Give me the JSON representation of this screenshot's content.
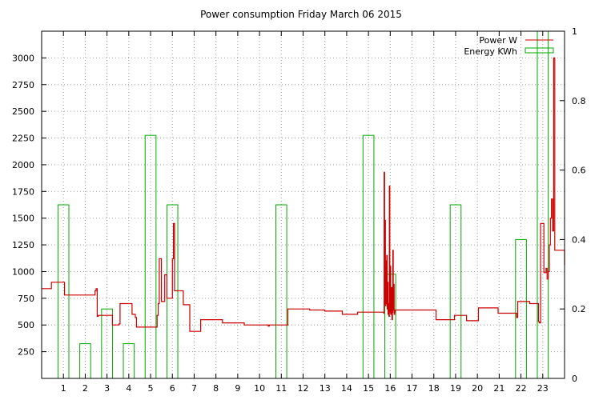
{
  "colors": {
    "power": "#cc0000",
    "energy": "#00aa00",
    "grid": "#a0a0a0",
    "axis": "#000000"
  },
  "chart_data": {
    "type": "line",
    "title": "Power consumption Friday March 06 2015",
    "xlim": [
      0,
      24
    ],
    "xticks": [
      1,
      2,
      3,
      4,
      5,
      6,
      7,
      8,
      9,
      10,
      11,
      12,
      13,
      14,
      15,
      16,
      17,
      18,
      19,
      20,
      21,
      22,
      23
    ],
    "xticklabels": [
      "1",
      "2",
      "3",
      "4",
      "5",
      "6",
      "7",
      "8",
      "9",
      "10",
      "11",
      "12",
      "13",
      "14",
      "15",
      "16",
      "17",
      "18",
      "19",
      "20",
      "21",
      "22",
      "23"
    ],
    "ylim": [
      0,
      3250
    ],
    "yticks": [
      250,
      500,
      750,
      1000,
      1250,
      1500,
      1750,
      2000,
      2250,
      2500,
      2750,
      3000
    ],
    "yticklabels": [
      "250",
      "500",
      "750",
      "1000",
      "1250",
      "1500",
      "1750",
      "2000",
      "2250",
      "2500",
      "2750",
      "3000"
    ],
    "y2lim": [
      0,
      1
    ],
    "y2ticks": [
      0,
      0.2,
      0.4,
      0.6,
      0.8,
      1
    ],
    "y2ticklabels": [
      "0",
      "0.2",
      "0.4",
      "0.6",
      "0.8",
      "1"
    ],
    "grid": true,
    "legend_position": "top-right",
    "series": [
      {
        "name": "Power W",
        "axis": "y",
        "style": "step",
        "x": [
          0.0,
          0.45,
          1.05,
          2.45,
          2.5,
          2.55,
          2.6,
          3.2,
          3.25,
          3.55,
          3.6,
          4.1,
          4.15,
          4.3,
          4.35,
          5.15,
          5.3,
          5.35,
          5.4,
          5.5,
          5.65,
          5.75,
          5.95,
          6.0,
          6.05,
          6.1,
          6.35,
          6.5,
          6.6,
          6.8,
          7.3,
          8.2,
          8.3,
          9.3,
          10.4,
          10.45,
          11.3,
          12.3,
          13.0,
          13.8,
          14.5,
          15.7,
          15.72,
          15.74,
          15.76,
          15.78,
          15.8,
          15.82,
          15.84,
          15.86,
          15.88,
          15.9,
          15.92,
          15.94,
          15.96,
          15.98,
          16.0,
          16.02,
          16.04,
          16.06,
          16.08,
          16.1,
          16.12,
          16.14,
          16.16,
          16.18,
          16.2,
          16.22,
          16.25,
          16.3,
          17.0,
          18.1,
          18.95,
          19.5,
          19.85,
          20.05,
          20.95,
          21.8,
          21.85,
          22.4,
          22.8,
          22.85,
          22.9,
          23.05,
          23.15,
          23.2,
          23.25,
          23.3,
          23.35,
          23.4,
          23.45,
          23.5,
          23.55,
          23.6,
          24.0
        ],
        "y": [
          840,
          900,
          780,
          820,
          840,
          580,
          590,
          590,
          500,
          510,
          700,
          700,
          600,
          570,
          480,
          480,
          590,
          700,
          1120,
          720,
          970,
          750,
          750,
          1120,
          1450,
          820,
          820,
          690,
          690,
          440,
          550,
          550,
          520,
          500,
          490,
          500,
          650,
          640,
          630,
          600,
          620,
          610,
          1930,
          700,
          1480,
          680,
          1100,
          700,
          1150,
          650,
          900,
          600,
          700,
          580,
          1800,
          620,
          1050,
          600,
          700,
          850,
          550,
          620,
          1200,
          640,
          880,
          600,
          620,
          640,
          640,
          640,
          640,
          550,
          590,
          540,
          540,
          660,
          610,
          570,
          720,
          700,
          530,
          520,
          1450,
          990,
          1030,
          930,
          1000,
          1250,
          1500,
          1680,
          1380,
          3000,
          1200,
          1200,
          1060
        ]
      },
      {
        "name": "Energy KWh",
        "axis": "y2",
        "style": "impulse",
        "width": 0.5,
        "x": [
          1,
          2,
          3,
          4,
          5,
          6,
          11,
          15,
          16,
          19,
          22,
          23
        ],
        "y": [
          0.5,
          0.1,
          0.2,
          0.1,
          0.7,
          0.5,
          0.5,
          0.7,
          0.3,
          0.5,
          0.4,
          1.0
        ]
      }
    ]
  }
}
